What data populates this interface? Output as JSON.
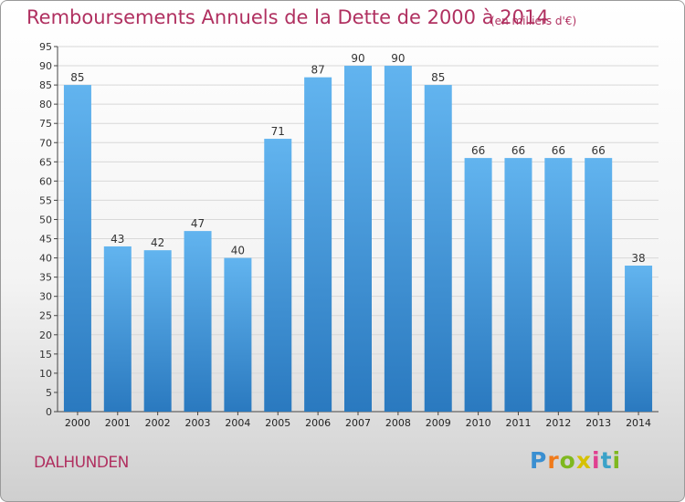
{
  "header": {
    "title": "Remboursements Annuels de la Dette de 2000 à 2014",
    "subtitle": "(en milliers d'€)"
  },
  "footer": {
    "commune": "DALHUNDEN",
    "logo_letters": [
      "P",
      "r",
      "o",
      "x",
      "i",
      "t",
      "i"
    ]
  },
  "colors": {
    "bar_light": "#5eb0ec",
    "bar_dark": "#2a79bf",
    "title": "#b03060"
  },
  "chart_data": {
    "type": "bar",
    "title": "Remboursements Annuels de la Dette de 2000 à 2014",
    "xlabel": "",
    "ylabel": "",
    "categories": [
      "2000",
      "2001",
      "2002",
      "2003",
      "2004",
      "2005",
      "2006",
      "2007",
      "2008",
      "2009",
      "2010",
      "2011",
      "2012",
      "2013",
      "2014"
    ],
    "values": [
      85,
      43,
      42,
      47,
      40,
      71,
      87,
      90,
      90,
      85,
      66,
      66,
      66,
      66,
      38
    ],
    "ylim": [
      0,
      95
    ],
    "yticks": [
      0,
      5,
      10,
      15,
      20,
      25,
      30,
      35,
      40,
      45,
      50,
      55,
      60,
      65,
      70,
      75,
      80,
      85,
      90,
      95
    ],
    "grid": true
  }
}
